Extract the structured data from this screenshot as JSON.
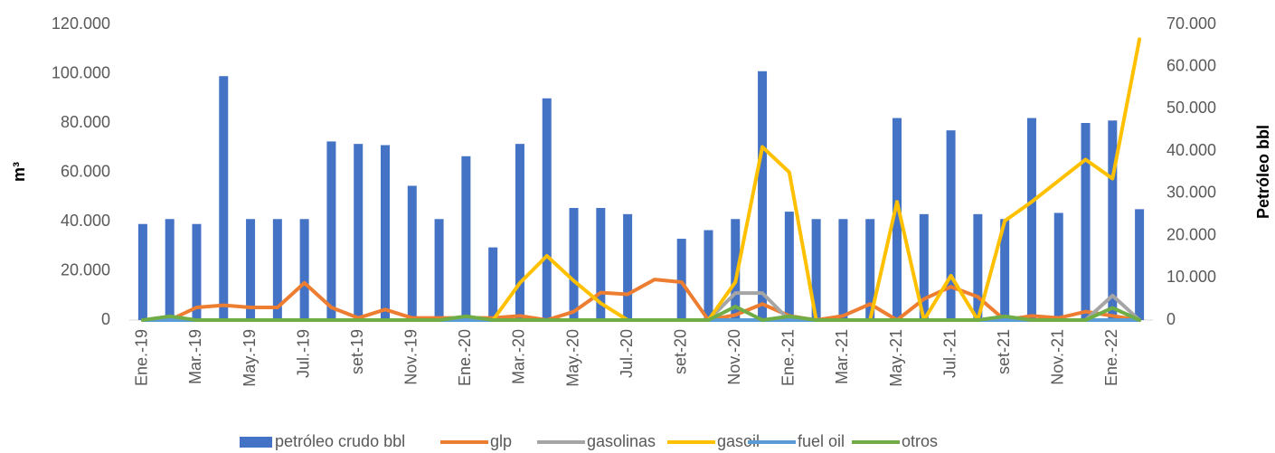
{
  "chart_data": {
    "type": "combo",
    "ylabel": "m³",
    "y2label": "Petróleo bbl",
    "categories": [
      "Ene.-19",
      null,
      "Mar.-19",
      null,
      "May.-19",
      null,
      "Jul.-19",
      null,
      "set-19",
      null,
      "Nov.-19",
      null,
      "Ene.-20",
      null,
      "Mar.-20",
      null,
      "May.-20",
      null,
      "Jul.-20",
      null,
      "set-20",
      null,
      "Nov.-20",
      null,
      "Ene.-21",
      null,
      "Mar.-21",
      null,
      "May.-21",
      null,
      "Jul.-21",
      null,
      "set-21",
      null,
      "Nov.-21",
      null,
      "Ene.-22",
      null
    ],
    "ylim": [
      0,
      120000
    ],
    "yticks": [
      {
        "value": 0,
        "label": "0"
      },
      {
        "value": 20000,
        "label": "20.000"
      },
      {
        "value": 40000,
        "label": "40.000"
      },
      {
        "value": 60000,
        "label": "60.000"
      },
      {
        "value": 80000,
        "label": "80.000"
      },
      {
        "value": 100000,
        "label": "100.000"
      },
      {
        "value": 120000,
        "label": "120.000"
      }
    ],
    "y2lim": [
      0,
      70000
    ],
    "y2ticks": [
      {
        "value": 0,
        "label": "0"
      },
      {
        "value": 10000,
        "label": "10.000"
      },
      {
        "value": 20000,
        "label": "20.000"
      },
      {
        "value": 30000,
        "label": "30.000"
      },
      {
        "value": 40000,
        "label": "40.000"
      },
      {
        "value": 50000,
        "label": "50.000"
      },
      {
        "value": 60000,
        "label": "60.000"
      },
      {
        "value": 70000,
        "label": "70.000"
      }
    ],
    "grid": false,
    "legend": "bottom",
    "series": [
      {
        "name": "petróleo crudo bbl",
        "type": "bar",
        "color": "#4472c4",
        "values": [
          39000,
          41000,
          39000,
          99000,
          41000,
          41000,
          41000,
          72500,
          71500,
          71000,
          54500,
          41000,
          66500,
          29500,
          71500,
          90000,
          45500,
          45500,
          43000,
          null,
          33000,
          36500,
          41000,
          101000,
          44000,
          41000,
          41000,
          41000,
          82000,
          43000,
          77000,
          43000,
          41000,
          82000,
          43500,
          80000,
          81000,
          45000
        ]
      },
      {
        "name": "glp",
        "type": "line",
        "axis": "y2",
        "color": "#ed7d31",
        "values": [
          0,
          0,
          3000,
          3500,
          3000,
          3000,
          8800,
          3000,
          500,
          2500,
          500,
          500,
          500,
          500,
          1000,
          0,
          2000,
          6500,
          6100,
          9600,
          9000,
          0,
          1200,
          3800,
          1000,
          0,
          1000,
          3800,
          0,
          5000,
          7900,
          5500,
          0,
          1000,
          500,
          2000,
          1000,
          0
        ]
      },
      {
        "name": "gasolinas",
        "type": "line",
        "axis": "y2",
        "color": "#a5a5a5",
        "values": [
          0,
          0,
          0,
          0,
          0,
          0,
          0,
          0,
          0,
          0,
          0,
          0,
          0,
          0,
          0,
          0,
          0,
          0,
          0,
          0,
          0,
          0,
          6400,
          6400,
          0,
          0,
          0,
          0,
          0,
          0,
          0,
          0,
          0,
          0,
          0,
          0,
          5800,
          0
        ]
      },
      {
        "name": "gasoil",
        "type": "line",
        "axis": "y2",
        "color": "#ffc000",
        "values": [
          0,
          0,
          0,
          0,
          0,
          0,
          0,
          0,
          0,
          0,
          0,
          0,
          0,
          0,
          8800,
          15200,
          9300,
          4000,
          0,
          0,
          0,
          0,
          9000,
          41000,
          35000,
          0,
          0,
          0,
          28000,
          0,
          10500,
          0,
          23500,
          28000,
          33000,
          38000,
          33500,
          66500
        ]
      },
      {
        "name": "fuel oil",
        "type": "line",
        "axis": "y2",
        "color": "#5b9bd5",
        "values": [
          0,
          0,
          0,
          0,
          0,
          0,
          0,
          0,
          0,
          0,
          0,
          0,
          0,
          0,
          0,
          0,
          0,
          0,
          0,
          0,
          0,
          0,
          0,
          0,
          0,
          0,
          0,
          0,
          0,
          0,
          0,
          0,
          0,
          0,
          0,
          0,
          0,
          0
        ]
      },
      {
        "name": "otros",
        "type": "line",
        "axis": "y2",
        "color": "#70ad47",
        "values": [
          0,
          900,
          0,
          0,
          0,
          0,
          0,
          0,
          0,
          0,
          0,
          0,
          900,
          0,
          0,
          0,
          0,
          0,
          0,
          0,
          0,
          0,
          3200,
          0,
          900,
          0,
          0,
          0,
          0,
          0,
          0,
          0,
          900,
          0,
          0,
          0,
          2900,
          0
        ]
      }
    ]
  }
}
